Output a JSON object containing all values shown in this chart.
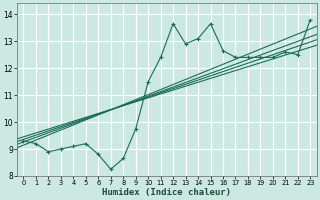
{
  "xlabel": "Humidex (Indice chaleur)",
  "bg_color": "#cce9e1",
  "grid_color": "#ffffff",
  "line_color": "#1a6b5a",
  "xlim": [
    -0.5,
    23.5
  ],
  "ylim": [
    8.0,
    14.4
  ],
  "xticks": [
    0,
    1,
    2,
    3,
    4,
    5,
    6,
    7,
    8,
    9,
    10,
    11,
    12,
    13,
    14,
    15,
    16,
    17,
    18,
    19,
    20,
    21,
    22,
    23
  ],
  "yticks": [
    8,
    9,
    10,
    11,
    12,
    13,
    14
  ],
  "scatter_x": [
    0,
    1,
    2,
    3,
    4,
    5,
    6,
    7,
    8,
    9,
    10,
    11,
    12,
    13,
    14,
    15,
    16,
    17,
    18,
    19,
    20,
    21,
    22,
    23
  ],
  "scatter_y": [
    9.3,
    9.2,
    8.9,
    9.0,
    9.1,
    9.2,
    8.8,
    8.25,
    8.65,
    9.75,
    11.5,
    12.4,
    13.65,
    12.9,
    13.1,
    13.65,
    12.65,
    12.4,
    12.4,
    12.4,
    12.4,
    12.6,
    12.5,
    13.8
  ],
  "reg_lines": [
    {
      "x0": -0.5,
      "y0": 9.05,
      "x1": 23.5,
      "y1": 13.55
    },
    {
      "x0": -0.5,
      "y0": 9.18,
      "x1": 23.5,
      "y1": 13.25
    },
    {
      "x0": -0.5,
      "y0": 9.28,
      "x1": 23.5,
      "y1": 13.05
    },
    {
      "x0": -0.5,
      "y0": 9.38,
      "x1": 23.5,
      "y1": 12.85
    }
  ]
}
